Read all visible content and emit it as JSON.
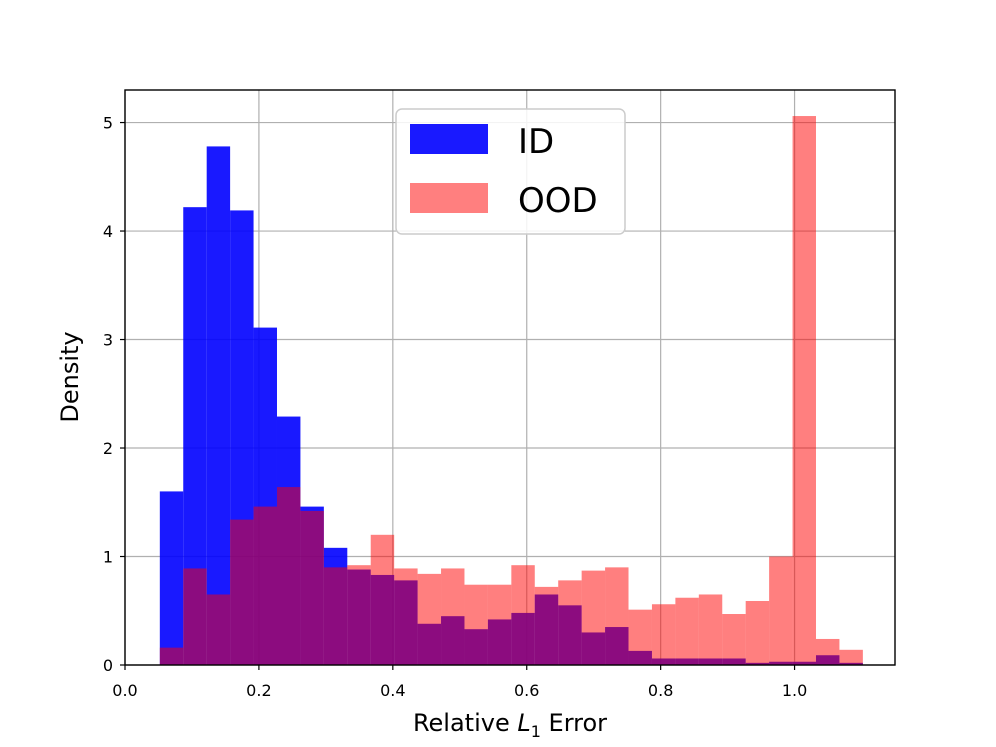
{
  "chart_data": {
    "type": "histogram",
    "xlabel_prefix": "Relative ",
    "xlabel_var": "L",
    "xlabel_sub": "1",
    "xlabel_suffix": " Error",
    "ylabel": "Density",
    "xlim": [
      0.0,
      1.15
    ],
    "ylim": [
      0,
      5.3
    ],
    "x_ticks": [
      "0.0",
      "0.2",
      "0.4",
      "0.6",
      "0.8",
      "1.0"
    ],
    "y_ticks": [
      "0",
      "1",
      "2",
      "3",
      "4",
      "5"
    ],
    "grid": true,
    "legend_position": "upper center",
    "bin_width": 0.035,
    "series": [
      {
        "name": "ID",
        "color": "#0000ff",
        "opacity": 0.9,
        "bins_start": [
          0.052,
          0.087,
          0.122,
          0.157,
          0.192,
          0.227,
          0.262,
          0.297,
          0.332,
          0.367,
          0.402,
          0.437,
          0.472,
          0.507,
          0.542,
          0.577,
          0.612,
          0.647,
          0.682,
          0.717,
          0.752,
          0.787,
          0.822,
          0.857,
          0.892,
          0.927,
          0.962,
          0.997,
          1.032,
          1.067
        ],
        "density": [
          1.6,
          4.22,
          4.78,
          4.19,
          3.11,
          2.29,
          1.46,
          1.08,
          0.88,
          0.83,
          0.78,
          0.38,
          0.45,
          0.33,
          0.42,
          0.48,
          0.65,
          0.55,
          0.3,
          0.35,
          0.13,
          0.06,
          0.06,
          0.06,
          0.06,
          0.02,
          0.03,
          0.03,
          0.09,
          0.02
        ]
      },
      {
        "name": "OOD",
        "color": "#ff0000",
        "opacity": 0.5,
        "bins_start": [
          0.052,
          0.087,
          0.122,
          0.157,
          0.192,
          0.227,
          0.262,
          0.297,
          0.332,
          0.367,
          0.402,
          0.437,
          0.472,
          0.507,
          0.542,
          0.577,
          0.612,
          0.647,
          0.682,
          0.717,
          0.752,
          0.787,
          0.822,
          0.857,
          0.892,
          0.927,
          0.962,
          0.997,
          1.032,
          1.067
        ],
        "density": [
          0.16,
          0.89,
          0.65,
          1.34,
          1.46,
          1.64,
          1.42,
          0.9,
          0.92,
          1.2,
          0.89,
          0.84,
          0.89,
          0.74,
          0.74,
          0.92,
          0.72,
          0.78,
          0.87,
          0.9,
          0.51,
          0.56,
          0.62,
          0.65,
          0.47,
          0.59,
          1.0,
          5.06,
          0.24,
          0.14
        ]
      }
    ]
  }
}
